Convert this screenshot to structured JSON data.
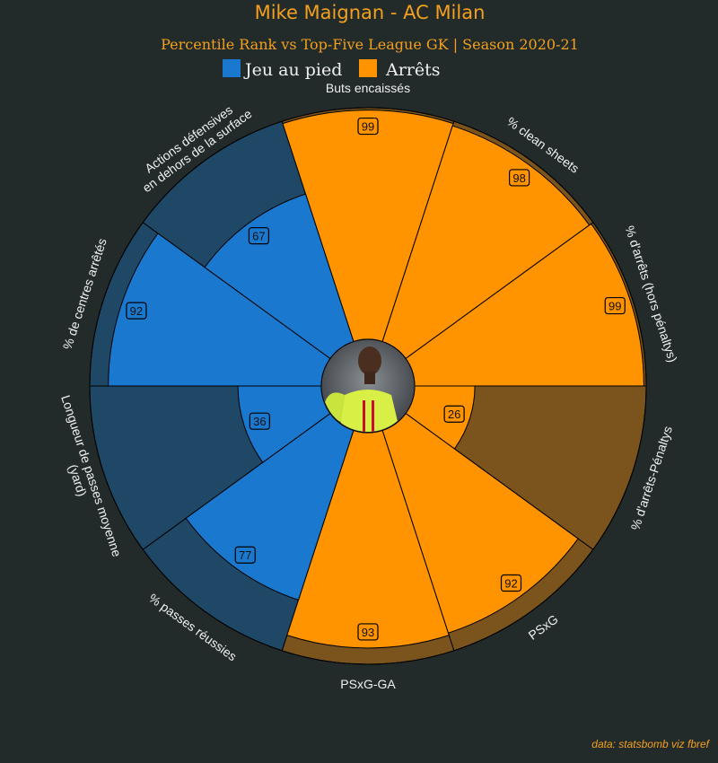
{
  "title": "Mike Maignan - AC Milan",
  "subtitle": "Percentile Rank vs Top-Five League GK | Season 2020-21",
  "credit": "data: statsbomb viz fbref",
  "colors": {
    "background": "#222b2a",
    "title": "#f2a01e",
    "text": "#f0f0f0",
    "blue": "#1a78cf",
    "blue_bg": "#1e4866",
    "orange": "#ff9300",
    "orange_bg": "#7a541c",
    "edge": "#000000"
  },
  "legend": [
    {
      "label": "Jeu au pied",
      "color": "#1a78cf"
    },
    {
      "label": "Arrêts",
      "color": "#ff9300"
    }
  ],
  "center_image": "player-photo",
  "chart_data": {
    "type": "polar-bar",
    "title": "Mike Maignan - AC Milan",
    "subtitle": "Percentile Rank vs Top-Five League GK | Season 2020-21",
    "rlim": [
      0,
      100
    ],
    "categories": [
      "Buts encaissés",
      "% clean sheets",
      "% d'arrêts (hors pénaltys)",
      "% d'arrêts-Pénaltys",
      "PSxG",
      "PSxG-GA",
      "% passes réussies",
      "Longueur de passes moyenne (yard)",
      "% de centres arrêtés",
      "Actions défensives en dehors de la surface"
    ],
    "category_lines": [
      [
        "Buts encaissés"
      ],
      [
        "% clean sheets"
      ],
      [
        "% d'arrêts (hors pénaltys)"
      ],
      [
        "% d'arrêts-Pénaltys"
      ],
      [
        "PSxG"
      ],
      [
        "PSxG-GA"
      ],
      [
        "% passes réussies"
      ],
      [
        "Longueur de passes moyenne",
        "(yard)"
      ],
      [
        "% de centres arrêtés"
      ],
      [
        "Actions défensives",
        "en dehors de la surface"
      ]
    ],
    "values": [
      99,
      98,
      99,
      26,
      92,
      93,
      77,
      36,
      92,
      67
    ],
    "groups": [
      "Arrêts",
      "Arrêts",
      "Arrêts",
      "Arrêts",
      "Arrêts",
      "Arrêts",
      "Jeu au pied",
      "Jeu au pied",
      "Jeu au pied",
      "Jeu au pied"
    ],
    "series": [
      {
        "name": "Jeu au pied",
        "color": "#1a78cf"
      },
      {
        "name": "Arrêts",
        "color": "#ff9300"
      }
    ]
  }
}
